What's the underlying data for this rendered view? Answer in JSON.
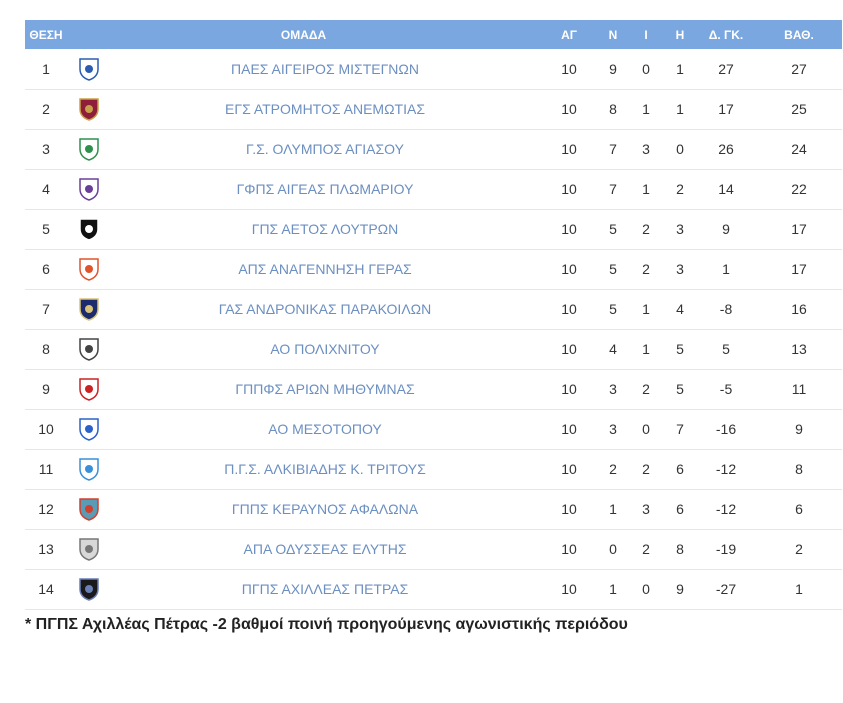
{
  "headers": {
    "pos": "ΘΕΣΗ",
    "team": "ΟΜΑΔΑ",
    "played": "ΑΓ",
    "won": "Ν",
    "drawn": "Ι",
    "lost": "Η",
    "goal_diff": "Δ. ΓΚ.",
    "points": "ΒΑΘ."
  },
  "rows": [
    {
      "pos": "1",
      "logo": "team-crest",
      "team": "ΠΑΕΣ ΑΙΓΕΙΡΟΣ ΜΙΣΤΕΓΝΩΝ",
      "played": "10",
      "won": "9",
      "drawn": "0",
      "lost": "1",
      "goal_diff": "27",
      "points": "27"
    },
    {
      "pos": "2",
      "logo": "team-crest",
      "team": "ΕΓΣ ΑΤΡΟΜΗΤΟΣ ΑΝΕΜΩΤΙΑΣ",
      "played": "10",
      "won": "8",
      "drawn": "1",
      "lost": "1",
      "goal_diff": "17",
      "points": "25"
    },
    {
      "pos": "3",
      "logo": "team-crest",
      "team": "Γ.Σ. ΟΛΥΜΠΟΣ ΑΓΙΑΣΟΥ",
      "played": "10",
      "won": "7",
      "drawn": "3",
      "lost": "0",
      "goal_diff": "26",
      "points": "24"
    },
    {
      "pos": "4",
      "logo": "team-crest",
      "team": "ΓΦΠΣ ΑΙΓΕΑΣ ΠΛΩΜΑΡΙΟΥ",
      "played": "10",
      "won": "7",
      "drawn": "1",
      "lost": "2",
      "goal_diff": "14",
      "points": "22"
    },
    {
      "pos": "5",
      "logo": "team-crest",
      "team": "ΓΠΣ ΑΕΤΟΣ ΛΟΥΤΡΩΝ",
      "played": "10",
      "won": "5",
      "drawn": "2",
      "lost": "3",
      "goal_diff": "9",
      "points": "17"
    },
    {
      "pos": "6",
      "logo": "team-crest",
      "team": "ΑΠΣ ΑΝΑΓΕΝΝΗΣΗ ΓΕΡΑΣ",
      "played": "10",
      "won": "5",
      "drawn": "2",
      "lost": "3",
      "goal_diff": "1",
      "points": "17"
    },
    {
      "pos": "7",
      "logo": "team-crest",
      "team": "ΓΑΣ ΑΝΔΡΟΝΙΚΑΣ ΠΑΡΑΚΟΙΛΩΝ",
      "played": "10",
      "won": "5",
      "drawn": "1",
      "lost": "4",
      "goal_diff": "-8",
      "points": "16"
    },
    {
      "pos": "8",
      "logo": "team-crest",
      "team": "ΑΟ ΠΟΛΙΧΝΙΤΟΥ",
      "played": "10",
      "won": "4",
      "drawn": "1",
      "lost": "5",
      "goal_diff": "5",
      "points": "13"
    },
    {
      "pos": "9",
      "logo": "team-crest",
      "team": "ΓΠΠΦΣ ΑΡΙΩΝ ΜΗΘΥΜΝΑΣ",
      "played": "10",
      "won": "3",
      "drawn": "2",
      "lost": "5",
      "goal_diff": "-5",
      "points": "11"
    },
    {
      "pos": "10",
      "logo": "team-crest",
      "team": "ΑΟ ΜΕΣΟΤΟΠΟΥ",
      "played": "10",
      "won": "3",
      "drawn": "0",
      "lost": "7",
      "goal_diff": "-16",
      "points": "9"
    },
    {
      "pos": "11",
      "logo": "team-crest",
      "team": "Π.Γ.Σ. ΑΛΚΙΒΙΑΔΗΣ Κ. ΤΡΙΤΟΥΣ",
      "played": "10",
      "won": "2",
      "drawn": "2",
      "lost": "6",
      "goal_diff": "-12",
      "points": "8"
    },
    {
      "pos": "12",
      "logo": "team-crest",
      "team": "ΓΠΠΣ ΚΕΡΑΥΝΟΣ ΑΦΑΛΩΝΑ",
      "played": "10",
      "won": "1",
      "drawn": "3",
      "lost": "6",
      "goal_diff": "-12",
      "points": "6"
    },
    {
      "pos": "13",
      "logo": "team-crest",
      "team": "ΑΠΑ ΟΔΥΣΣΕΑΣ ΕΛΥΤΗΣ",
      "played": "10",
      "won": "0",
      "drawn": "2",
      "lost": "8",
      "goal_diff": "-19",
      "points": "2"
    },
    {
      "pos": "14",
      "logo": "team-crest",
      "team": "ΠΓΠΣ ΑΧΙΛΛΕΑΣ ΠΕΤΡΑΣ",
      "played": "10",
      "won": "1",
      "drawn": "0",
      "lost": "9",
      "goal_diff": "-27",
      "points": "1"
    }
  ],
  "footnote": "* ΠΓΠΣ Αχιλλέας Πέτρας -2 βαθμοί ποινή προηγούμενης αγωνιστικής περιόδου",
  "colors": {
    "header_bg": "#7aa7e0",
    "header_text": "#ffffff",
    "team_text": "#6b8fc0",
    "row_border": "#e6e6e6"
  }
}
